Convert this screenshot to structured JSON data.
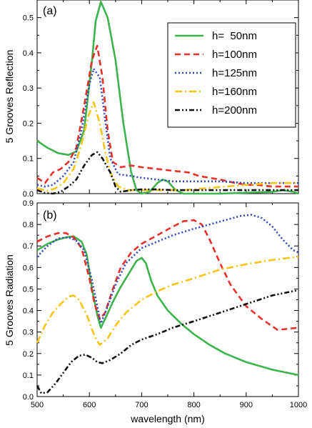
{
  "chart_data": [
    {
      "type": "line",
      "panel_label": "(a)",
      "ylabel": "5 Grooves Reflection",
      "xlim": [
        500,
        1000
      ],
      "ylim": [
        0,
        0.55
      ],
      "x_ticks": [
        500,
        600,
        700,
        800,
        900,
        1000
      ],
      "y_ticks": [
        0.0,
        0.1,
        0.2,
        0.3,
        0.4,
        0.5
      ],
      "y_tick_labels": [
        "0.0",
        "0.1",
        "0.2",
        "0.3",
        "0.4",
        "0.5"
      ],
      "legend_position": "top-right",
      "series": [
        {
          "name": "h=  50nm",
          "color": "#3cb44b",
          "dash": "solid",
          "points": [
            [
              500,
              0.15
            ],
            [
              520,
              0.13
            ],
            [
              540,
              0.115
            ],
            [
              560,
              0.11
            ],
            [
              575,
              0.12
            ],
            [
              590,
              0.18
            ],
            [
              605,
              0.38
            ],
            [
              612,
              0.49
            ],
            [
              622,
              0.545
            ],
            [
              635,
              0.5
            ],
            [
              650,
              0.38
            ],
            [
              665,
              0.2
            ],
            [
              680,
              0.06
            ],
            [
              690,
              0.01
            ],
            [
              700,
              0.0
            ],
            [
              715,
              0.005
            ],
            [
              730,
              0.03
            ],
            [
              740,
              0.04
            ],
            [
              750,
              0.035
            ],
            [
              765,
              0.01
            ],
            [
              780,
              0.0
            ],
            [
              850,
              0.0
            ],
            [
              950,
              0.005
            ],
            [
              970,
              0.01
            ],
            [
              990,
              0.005
            ],
            [
              1000,
              0.0
            ]
          ]
        },
        {
          "name": "h=100nm",
          "color": "#e8302a",
          "dash": "8,5",
          "points": [
            [
              500,
              0.045
            ],
            [
              515,
              0.03
            ],
            [
              530,
              0.06
            ],
            [
              545,
              0.07
            ],
            [
              560,
              0.09
            ],
            [
              575,
              0.13
            ],
            [
              590,
              0.25
            ],
            [
              605,
              0.38
            ],
            [
              615,
              0.42
            ],
            [
              625,
              0.33
            ],
            [
              635,
              0.18
            ],
            [
              645,
              0.09
            ],
            [
              660,
              0.075
            ],
            [
              680,
              0.08
            ],
            [
              700,
              0.075
            ],
            [
              730,
              0.07
            ],
            [
              760,
              0.065
            ],
            [
              790,
              0.06
            ],
            [
              810,
              0.05
            ],
            [
              850,
              0.04
            ],
            [
              880,
              0.03
            ],
            [
              900,
              0.025
            ],
            [
              920,
              0.025
            ],
            [
              950,
              0.02
            ],
            [
              980,
              0.02
            ],
            [
              1000,
              0.02
            ]
          ]
        },
        {
          "name": "h=125nm",
          "color": "#3347b8",
          "dash": "2,3",
          "points": [
            [
              500,
              0.025
            ],
            [
              515,
              0.02
            ],
            [
              530,
              0.025
            ],
            [
              550,
              0.05
            ],
            [
              570,
              0.09
            ],
            [
              585,
              0.18
            ],
            [
              600,
              0.31
            ],
            [
              608,
              0.355
            ],
            [
              620,
              0.33
            ],
            [
              630,
              0.21
            ],
            [
              640,
              0.1
            ],
            [
              655,
              0.055
            ],
            [
              680,
              0.05
            ],
            [
              700,
              0.045
            ],
            [
              730,
              0.04
            ],
            [
              760,
              0.035
            ],
            [
              800,
              0.035
            ],
            [
              850,
              0.035
            ],
            [
              900,
              0.03
            ],
            [
              950,
              0.03
            ],
            [
              1000,
              0.03
            ]
          ]
        },
        {
          "name": "h=160nm",
          "color": "#f5c518",
          "dash": "10,4,2,4",
          "points": [
            [
              500,
              0.015
            ],
            [
              520,
              0.008
            ],
            [
              535,
              0.015
            ],
            [
              550,
              0.03
            ],
            [
              570,
              0.07
            ],
            [
              585,
              0.14
            ],
            [
              598,
              0.22
            ],
            [
              608,
              0.26
            ],
            [
              620,
              0.2
            ],
            [
              630,
              0.12
            ],
            [
              640,
              0.06
            ],
            [
              655,
              0.02
            ],
            [
              675,
              0.01
            ],
            [
              700,
              0.01
            ],
            [
              740,
              0.01
            ],
            [
              780,
              0.01
            ],
            [
              820,
              0.015
            ],
            [
              860,
              0.02
            ],
            [
              900,
              0.025
            ],
            [
              950,
              0.03
            ],
            [
              1000,
              0.03
            ]
          ]
        },
        {
          "name": "h=200nm",
          "color": "#111111",
          "dash": "7,3,2,3,2,3",
          "points": [
            [
              500,
              0.01
            ],
            [
              515,
              0.002
            ],
            [
              530,
              0.0
            ],
            [
              545,
              0.005
            ],
            [
              560,
              0.02
            ],
            [
              575,
              0.04
            ],
            [
              590,
              0.08
            ],
            [
              605,
              0.11
            ],
            [
              615,
              0.118
            ],
            [
              625,
              0.1
            ],
            [
              640,
              0.06
            ],
            [
              650,
              0.02
            ],
            [
              660,
              0.005
            ],
            [
              680,
              0.01
            ],
            [
              700,
              0.012
            ],
            [
              730,
              0.012
            ],
            [
              760,
              0.01
            ],
            [
              800,
              0.01
            ],
            [
              850,
              0.01
            ],
            [
              900,
              0.01
            ],
            [
              950,
              0.01
            ],
            [
              1000,
              0.01
            ]
          ]
        }
      ]
    },
    {
      "type": "line",
      "panel_label": "(b)",
      "ylabel": "5 Grooves Radiation",
      "xlabel": "wavelength (nm)",
      "xlim": [
        500,
        1000
      ],
      "ylim": [
        0,
        0.9
      ],
      "x_ticks": [
        500,
        600,
        700,
        800,
        900,
        1000
      ],
      "x_tick_labels": [
        "500",
        "600",
        "700",
        "800",
        "900",
        "1000"
      ],
      "y_ticks": [
        0.0,
        0.1,
        0.2,
        0.3,
        0.4,
        0.5,
        0.6,
        0.7,
        0.8,
        0.9
      ],
      "y_tick_labels": [
        "0.0",
        "0.1",
        "0.2",
        "0.3",
        "0.4",
        "0.5",
        "0.6",
        "0.7",
        "0.8",
        "0.9"
      ],
      "series": [
        {
          "name": "h=  50nm",
          "color": "#3cb44b",
          "dash": "solid",
          "points": [
            [
              500,
              0.68
            ],
            [
              520,
              0.71
            ],
            [
              540,
              0.73
            ],
            [
              555,
              0.74
            ],
            [
              570,
              0.745
            ],
            [
              585,
              0.72
            ],
            [
              595,
              0.66
            ],
            [
              605,
              0.5
            ],
            [
              615,
              0.38
            ],
            [
              622,
              0.32
            ],
            [
              630,
              0.36
            ],
            [
              645,
              0.44
            ],
            [
              660,
              0.51
            ],
            [
              675,
              0.57
            ],
            [
              690,
              0.63
            ],
            [
              700,
              0.645
            ],
            [
              708,
              0.62
            ],
            [
              718,
              0.54
            ],
            [
              730,
              0.47
            ],
            [
              750,
              0.4
            ],
            [
              775,
              0.34
            ],
            [
              800,
              0.29
            ],
            [
              830,
              0.24
            ],
            [
              860,
              0.2
            ],
            [
              900,
              0.16
            ],
            [
              950,
              0.125
            ],
            [
              1000,
              0.1
            ]
          ]
        },
        {
          "name": "h=100nm",
          "color": "#e8302a",
          "dash": "8,5",
          "points": [
            [
              500,
              0.72
            ],
            [
              520,
              0.745
            ],
            [
              540,
              0.76
            ],
            [
              555,
              0.76
            ],
            [
              570,
              0.74
            ],
            [
              585,
              0.69
            ],
            [
              600,
              0.55
            ],
            [
              610,
              0.43
            ],
            [
              620,
              0.36
            ],
            [
              630,
              0.39
            ],
            [
              645,
              0.5
            ],
            [
              660,
              0.6
            ],
            [
              680,
              0.67
            ],
            [
              700,
              0.71
            ],
            [
              730,
              0.75
            ],
            [
              760,
              0.79
            ],
            [
              780,
              0.815
            ],
            [
              800,
              0.82
            ],
            [
              815,
              0.8
            ],
            [
              830,
              0.73
            ],
            [
              850,
              0.62
            ],
            [
              870,
              0.52
            ],
            [
              900,
              0.42
            ],
            [
              930,
              0.36
            ],
            [
              960,
              0.31
            ],
            [
              1000,
              0.32
            ]
          ]
        },
        {
          "name": "h=125nm",
          "color": "#3347b8",
          "dash": "2,3",
          "points": [
            [
              500,
              0.65
            ],
            [
              520,
              0.7
            ],
            [
              540,
              0.735
            ],
            [
              560,
              0.74
            ],
            [
              575,
              0.725
            ],
            [
              590,
              0.68
            ],
            [
              605,
              0.54
            ],
            [
              615,
              0.42
            ],
            [
              622,
              0.34
            ],
            [
              632,
              0.4
            ],
            [
              650,
              0.52
            ],
            [
              670,
              0.62
            ],
            [
              700,
              0.69
            ],
            [
              730,
              0.72
            ],
            [
              760,
              0.75
            ],
            [
              800,
              0.78
            ],
            [
              830,
              0.8
            ],
            [
              860,
              0.82
            ],
            [
              890,
              0.84
            ],
            [
              910,
              0.845
            ],
            [
              930,
              0.83
            ],
            [
              950,
              0.79
            ],
            [
              970,
              0.73
            ],
            [
              990,
              0.68
            ],
            [
              1000,
              0.67
            ]
          ]
        },
        {
          "name": "h=160nm",
          "color": "#f5c518",
          "dash": "10,4,2,4",
          "points": [
            [
              500,
              0.25
            ],
            [
              515,
              0.33
            ],
            [
              530,
              0.39
            ],
            [
              545,
              0.43
            ],
            [
              560,
              0.465
            ],
            [
              570,
              0.47
            ],
            [
              580,
              0.45
            ],
            [
              595,
              0.38
            ],
            [
              610,
              0.28
            ],
            [
              620,
              0.24
            ],
            [
              635,
              0.27
            ],
            [
              650,
              0.33
            ],
            [
              670,
              0.39
            ],
            [
              700,
              0.45
            ],
            [
              730,
              0.49
            ],
            [
              760,
              0.52
            ],
            [
              800,
              0.55
            ],
            [
              850,
              0.59
            ],
            [
              900,
              0.615
            ],
            [
              950,
              0.635
            ],
            [
              1000,
              0.65
            ]
          ]
        },
        {
          "name": "h=200nm",
          "color": "#111111",
          "dash": "7,3,2,3,2,3",
          "points": [
            [
              500,
              0.05
            ],
            [
              508,
              0.015
            ],
            [
              520,
              0.02
            ],
            [
              535,
              0.06
            ],
            [
              550,
              0.11
            ],
            [
              565,
              0.16
            ],
            [
              580,
              0.19
            ],
            [
              592,
              0.195
            ],
            [
              605,
              0.18
            ],
            [
              615,
              0.16
            ],
            [
              625,
              0.155
            ],
            [
              640,
              0.17
            ],
            [
              660,
              0.2
            ],
            [
              680,
              0.24
            ],
            [
              700,
              0.265
            ],
            [
              730,
              0.29
            ],
            [
              760,
              0.32
            ],
            [
              800,
              0.35
            ],
            [
              850,
              0.39
            ],
            [
              900,
              0.43
            ],
            [
              950,
              0.47
            ],
            [
              1000,
              0.495
            ]
          ]
        }
      ]
    }
  ]
}
